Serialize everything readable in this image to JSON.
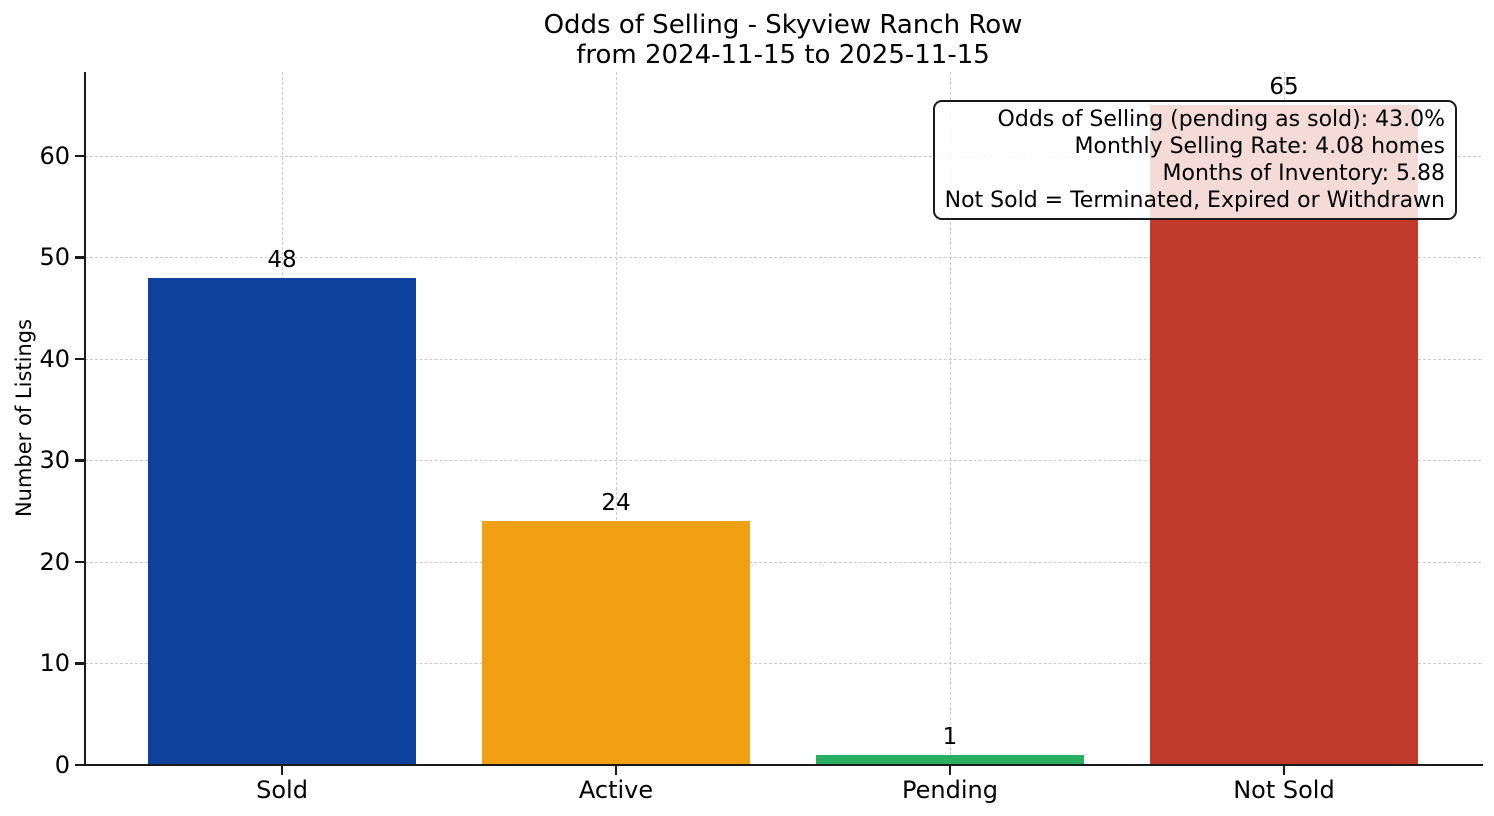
{
  "title": {
    "line1": "Odds of Selling - Skyview Ranch Row",
    "line2": "from 2024-11-15 to 2025-11-15"
  },
  "ylabel": "Number of Listings",
  "annotation": {
    "lines": [
      "Odds of Selling (pending as sold): 43.0%",
      "Monthly Selling Rate: 4.08 homes",
      "Months of Inventory: 5.88",
      "Not Sold = Terminated, Expired or Withdrawn"
    ]
  },
  "chart_data": {
    "type": "bar",
    "title": "Odds of Selling - Skyview Ranch Row\nfrom 2024-11-15 to 2025-11-15",
    "categories": [
      "Sold",
      "Active",
      "Pending",
      "Not Sold"
    ],
    "values": [
      48,
      24,
      1,
      65
    ],
    "value_labels": [
      "48",
      "24",
      "1",
      "65"
    ],
    "bar_colors": [
      "#0e419e",
      "#f2a013",
      "#28ae60",
      "#c0392b"
    ],
    "xlabel": "",
    "ylabel": "Number of Listings",
    "yticks": [
      0,
      10,
      20,
      30,
      40,
      50,
      60
    ],
    "ylim": [
      0,
      68.25
    ],
    "grid": {
      "style": "dashed",
      "color": "#cbcbcb",
      "horizontal": true,
      "vertical": true
    },
    "legend_position": "none",
    "visible_stats": {
      "odds_of_selling_pending_as_sold_pct": 43.0,
      "monthly_selling_rate_homes": 4.08,
      "months_of_inventory": 5.88
    }
  },
  "colors": {
    "axis": "#1a1a1a",
    "grid": "#cbcbcb",
    "background": "#ffffff",
    "annotation_border": "#1a1a1a"
  }
}
